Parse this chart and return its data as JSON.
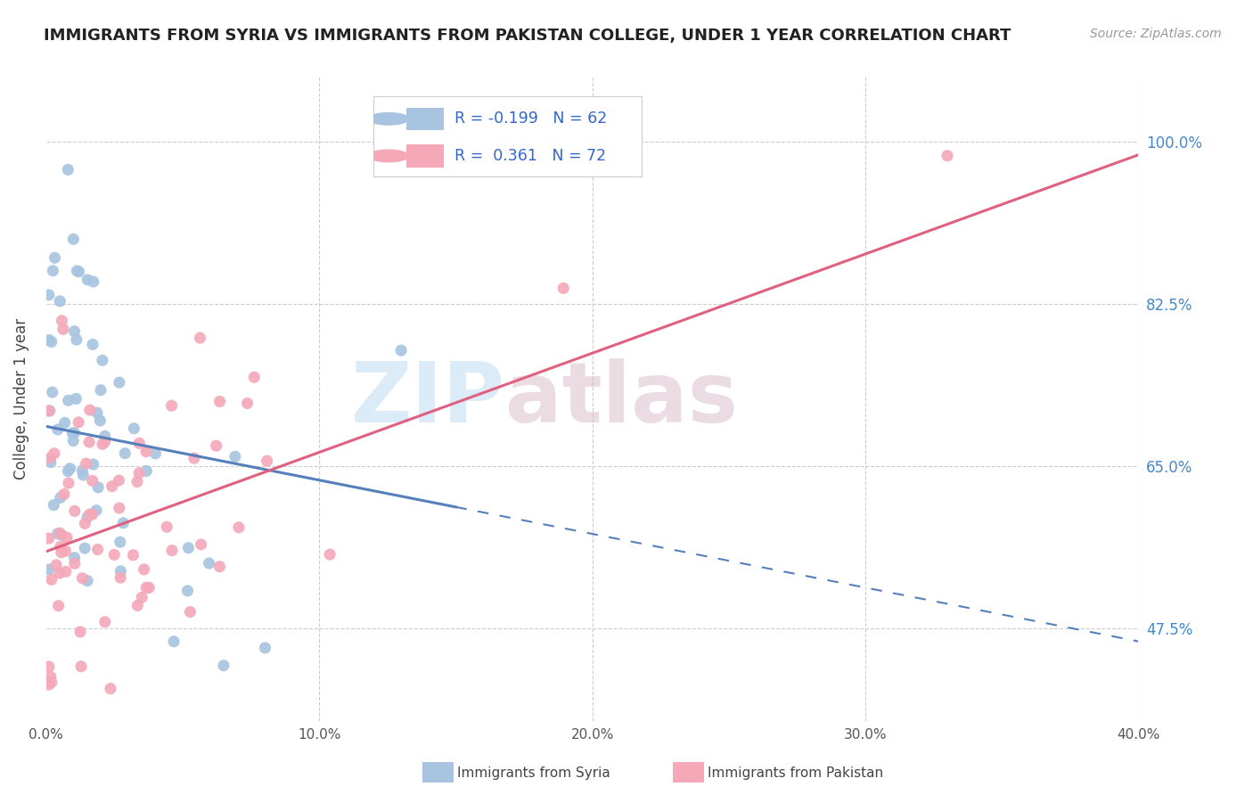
{
  "title": "IMMIGRANTS FROM SYRIA VS IMMIGRANTS FROM PAKISTAN COLLEGE, UNDER 1 YEAR CORRELATION CHART",
  "source": "Source: ZipAtlas.com",
  "ylabel": "College, Under 1 year",
  "xmin": 0.0,
  "xmax": 0.4,
  "ymin": 0.375,
  "ymax": 1.07,
  "syria_color": "#a8c4e0",
  "pakistan_color": "#f4a8b8",
  "syria_line_color": "#5580bb",
  "pakistan_line_color": "#e06080",
  "watermark_zip": "ZIP",
  "watermark_atlas": "atlas",
  "legend_syria_label": "R = -0.199   N = 62",
  "legend_pakistan_label": "R =  0.361   N = 72",
  "ytick_vals": [
    0.475,
    0.65,
    0.825,
    1.0
  ],
  "ytick_labels": [
    "47.5%",
    "65.0%",
    "82.5%",
    "100.0%"
  ],
  "xtick_vals": [
    0.0,
    0.1,
    0.2,
    0.3,
    0.4
  ],
  "xtick_labels": [
    "0.0%",
    "10.0%",
    "20.0%",
    "30.0%",
    "40.0%"
  ],
  "syria_line_x0": 0.0,
  "syria_line_x_solid_end": 0.15,
  "syria_line_x_dash_end": 0.4,
  "syria_line_y0": 0.693,
  "syria_line_slope": -0.58,
  "pakistan_line_x0": 0.0,
  "pakistan_line_x1": 0.4,
  "pakistan_line_y0": 0.558,
  "pakistan_line_slope": 1.07,
  "bottom_legend_syria": "Immigrants from Syria",
  "bottom_legend_pakistan": "Immigrants from Pakistan"
}
